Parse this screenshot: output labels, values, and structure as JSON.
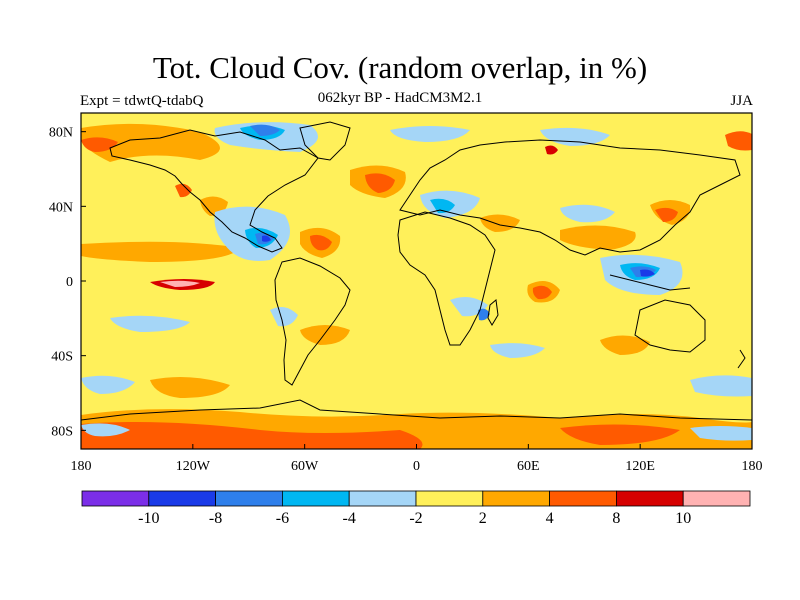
{
  "header": {
    "title": "Tot. Cloud Cov. (random overlap, in %)",
    "subtitle": "062kyr BP - HadCM3M2.1",
    "left_label": "Expt = tdwtQ-tdabQ",
    "right_label": "JJA"
  },
  "map": {
    "background_color": "#FFF05A",
    "lon_range": [
      -180,
      180
    ],
    "lat_range": [
      -90,
      90
    ],
    "x_tick_labels": [
      "180",
      "120W",
      "60W",
      "0",
      "60E",
      "120E",
      "180"
    ],
    "y_tick_labels": [
      "80N",
      "40N",
      "0",
      "40S",
      "80S"
    ]
  },
  "colorbar": {
    "colors": [
      "#7B2EE8",
      "#1A3BE8",
      "#2E7FEB",
      "#00B7F2",
      "#A5D6F7",
      "#FFF05A",
      "#FFA800",
      "#FF5A00",
      "#D60000",
      "#FFB2B2"
    ],
    "labels": [
      "-10",
      "-8",
      "-6",
      "-4",
      "-2",
      "2",
      "4",
      "8",
      "10"
    ]
  }
}
